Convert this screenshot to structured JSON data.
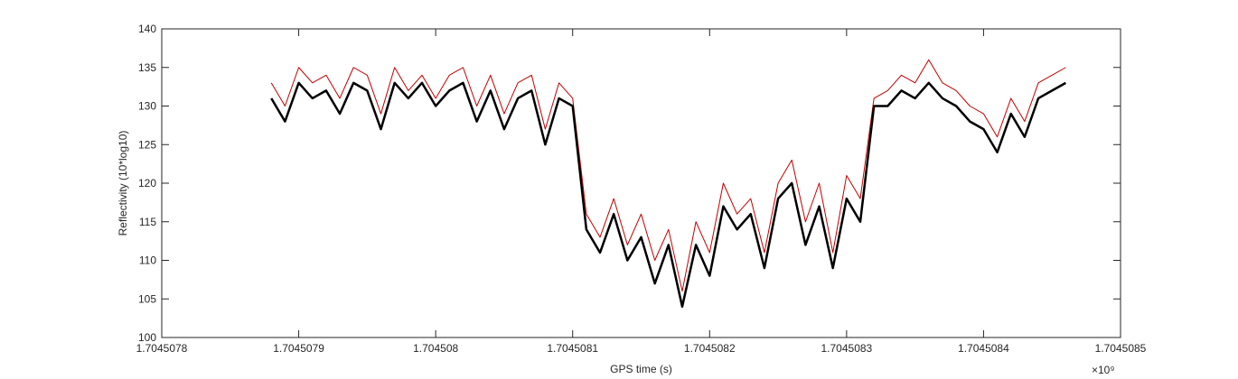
{
  "chart_data": {
    "type": "line",
    "xlabel": "GPS time (s)",
    "ylabel": "Reflectivity (10*log10)",
    "x_multiplier": "×10⁹",
    "xlim": [
      1.7045078,
      1.7045085
    ],
    "xticks": [
      1.7045078,
      1.7045079,
      1.704508,
      1.7045081,
      1.7045082,
      1.7045083,
      1.7045084,
      1.7045085
    ],
    "ylim": [
      100,
      140
    ],
    "yticks": [
      100,
      105,
      110,
      115,
      120,
      125,
      130,
      135,
      140
    ],
    "grid": false,
    "x": [
      1.70450788,
      1.70450789,
      1.7045079,
      1.70450791,
      1.70450792,
      1.70450793,
      1.70450794,
      1.70450795,
      1.70450796,
      1.70450797,
      1.70450798,
      1.70450799,
      1.704508,
      1.70450801,
      1.70450802,
      1.70450803,
      1.70450804,
      1.70450805,
      1.70450806,
      1.70450807,
      1.70450808,
      1.70450809,
      1.7045081,
      1.70450811,
      1.70450812,
      1.70450813,
      1.70450814,
      1.70450815,
      1.70450816,
      1.70450817,
      1.70450818,
      1.70450819,
      1.7045082,
      1.70450821,
      1.70450822,
      1.70450823,
      1.70450824,
      1.70450825,
      1.70450826,
      1.70450827,
      1.70450828,
      1.70450829,
      1.7045083,
      1.70450831,
      1.70450832,
      1.70450833,
      1.70450834,
      1.70450835,
      1.70450836,
      1.70450837,
      1.70450838,
      1.70450839,
      1.7045084,
      1.70450841,
      1.70450842,
      1.70450843,
      1.70450844,
      1.70450845,
      1.70450846
    ],
    "series": [
      {
        "color": "#c00000",
        "width": 1,
        "values": [
          133,
          130,
          135,
          133,
          134,
          131,
          135,
          134,
          129,
          135,
          132,
          134,
          131,
          134,
          135,
          130,
          134,
          129,
          133,
          134,
          127,
          133,
          131,
          116,
          113,
          118,
          112,
          116,
          110,
          114,
          106,
          115,
          111,
          120,
          116,
          118,
          111,
          120,
          123,
          115,
          120,
          111,
          121,
          118,
          131,
          132,
          134,
          133,
          136,
          133,
          132,
          130,
          129,
          126,
          131,
          128,
          133,
          134,
          135
        ]
      },
      {
        "color": "#000000",
        "width": 2.5,
        "values": [
          131,
          128,
          133,
          131,
          132,
          129,
          133,
          132,
          127,
          133,
          131,
          133,
          130,
          132,
          133,
          128,
          132,
          127,
          131,
          132,
          125,
          131,
          130,
          114,
          111,
          116,
          110,
          113,
          107,
          112,
          104,
          112,
          108,
          117,
          114,
          116,
          109,
          118,
          120,
          112,
          117,
          109,
          118,
          115,
          130,
          130,
          132,
          131,
          133,
          131,
          130,
          128,
          127,
          124,
          129,
          126,
          131,
          132,
          133
        ]
      }
    ]
  }
}
